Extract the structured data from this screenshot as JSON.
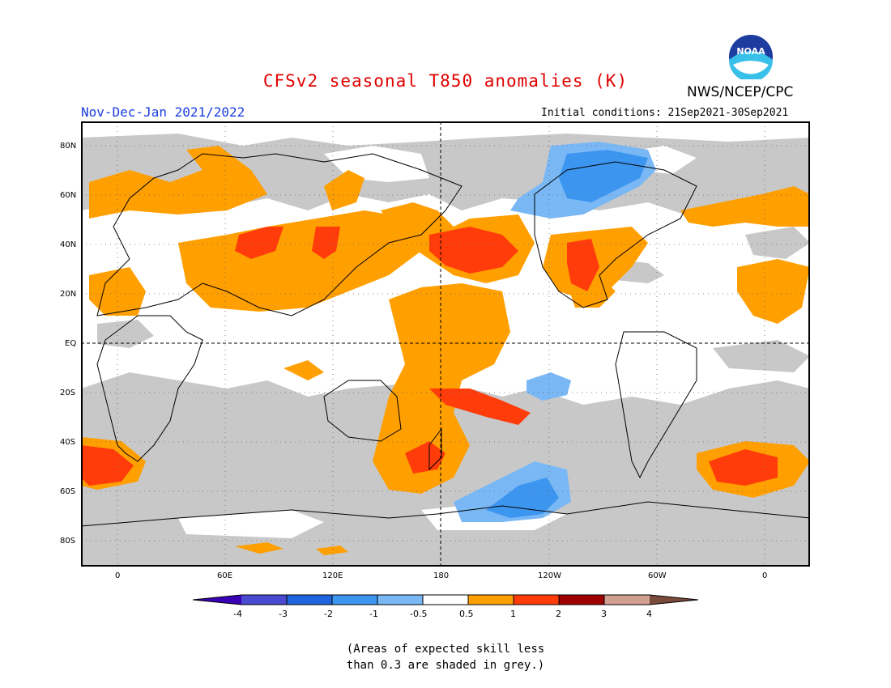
{
  "title": "CFSv2 seasonal T850 anomalies (K)",
  "period": "Nov-Dec-Jan 2021/2022",
  "initial_conditions": "Initial conditions: 21Sep2021-30Sep2021",
  "agency": "NWS/NCEP/CPC",
  "logo": {
    "text": "NOAA",
    "icon": "noaa-logo-icon"
  },
  "map": {
    "lat_ticks": [
      "80N",
      "60N",
      "40N",
      "20N",
      "EQ",
      "20S",
      "40S",
      "60S",
      "80S"
    ],
    "lon_ticks": [
      "0",
      "60E",
      "120E",
      "180",
      "120W",
      "60W",
      "0"
    ],
    "colors": {
      "skill_mask": "#c8c8c8",
      "pos_0_5_1": "#ff9f00",
      "pos_1_2": "#ff3c0a",
      "neg_0_5_1": "#79b8f5",
      "neg_1_2": "#3c96f0"
    }
  },
  "colorbar": {
    "labels": [
      "-4",
      "-3",
      "-2",
      "-1",
      "-0.5",
      "0.5",
      "1",
      "2",
      "3",
      "4"
    ],
    "colors": [
      "#3a00b5",
      "#4a4ad0",
      "#1e64dc",
      "#3c96f0",
      "#79b8f5",
      "#ffffff",
      "#ff9f00",
      "#ff3c0a",
      "#a00000",
      "#d2a090",
      "#7a4a3a"
    ]
  },
  "note": {
    "line1": "(Areas of expected skill less",
    "line2": "than 0.3 are shaded in grey.)"
  }
}
